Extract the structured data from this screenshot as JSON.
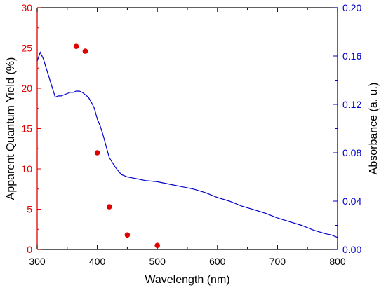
{
  "chart_data": {
    "type": "scatter+line",
    "x_axis": {
      "label": "Wavelength (nm)",
      "range": [
        300,
        800
      ],
      "ticks": [
        300,
        400,
        500,
        600,
        700,
        800
      ]
    },
    "y_left": {
      "label": "Apparent Quantum Yield (%)",
      "range": [
        0,
        30
      ],
      "ticks": [
        0,
        5,
        10,
        15,
        20,
        25,
        30
      ],
      "color": "#e00000"
    },
    "y_right": {
      "label": "Absorbance (a. u.)",
      "range": [
        0,
        0.2
      ],
      "ticks": [
        "0.00",
        "0.04",
        "0.08",
        "0.12",
        "0.16",
        "0.20"
      ],
      "color": "#0000cc"
    },
    "series": [
      {
        "kind": "scatter",
        "axis": "left",
        "color": "#e00000",
        "x": [
          365,
          380,
          400,
          420,
          450,
          500
        ],
        "y": [
          25.2,
          24.6,
          12.0,
          5.3,
          1.8,
          0.5
        ]
      },
      {
        "kind": "line",
        "axis": "right",
        "color": "#0000cc",
        "x": [
          300,
          305,
          310,
          315,
          320,
          325,
          330,
          335,
          340,
          345,
          350,
          355,
          360,
          365,
          370,
          375,
          380,
          385,
          390,
          395,
          400,
          405,
          410,
          415,
          420,
          430,
          440,
          450,
          460,
          470,
          480,
          500,
          520,
          540,
          560,
          580,
          600,
          620,
          640,
          660,
          680,
          700,
          720,
          740,
          760,
          780,
          790,
          800
        ],
        "y": [
          0.156,
          0.163,
          0.158,
          0.15,
          0.142,
          0.134,
          0.126,
          0.127,
          0.127,
          0.128,
          0.129,
          0.13,
          0.13,
          0.131,
          0.131,
          0.13,
          0.128,
          0.126,
          0.122,
          0.117,
          0.108,
          0.102,
          0.094,
          0.085,
          0.076,
          0.068,
          0.062,
          0.06,
          0.059,
          0.058,
          0.057,
          0.056,
          0.054,
          0.052,
          0.05,
          0.047,
          0.043,
          0.04,
          0.036,
          0.033,
          0.03,
          0.026,
          0.023,
          0.02,
          0.016,
          0.013,
          0.012,
          0.01
        ]
      }
    ]
  }
}
